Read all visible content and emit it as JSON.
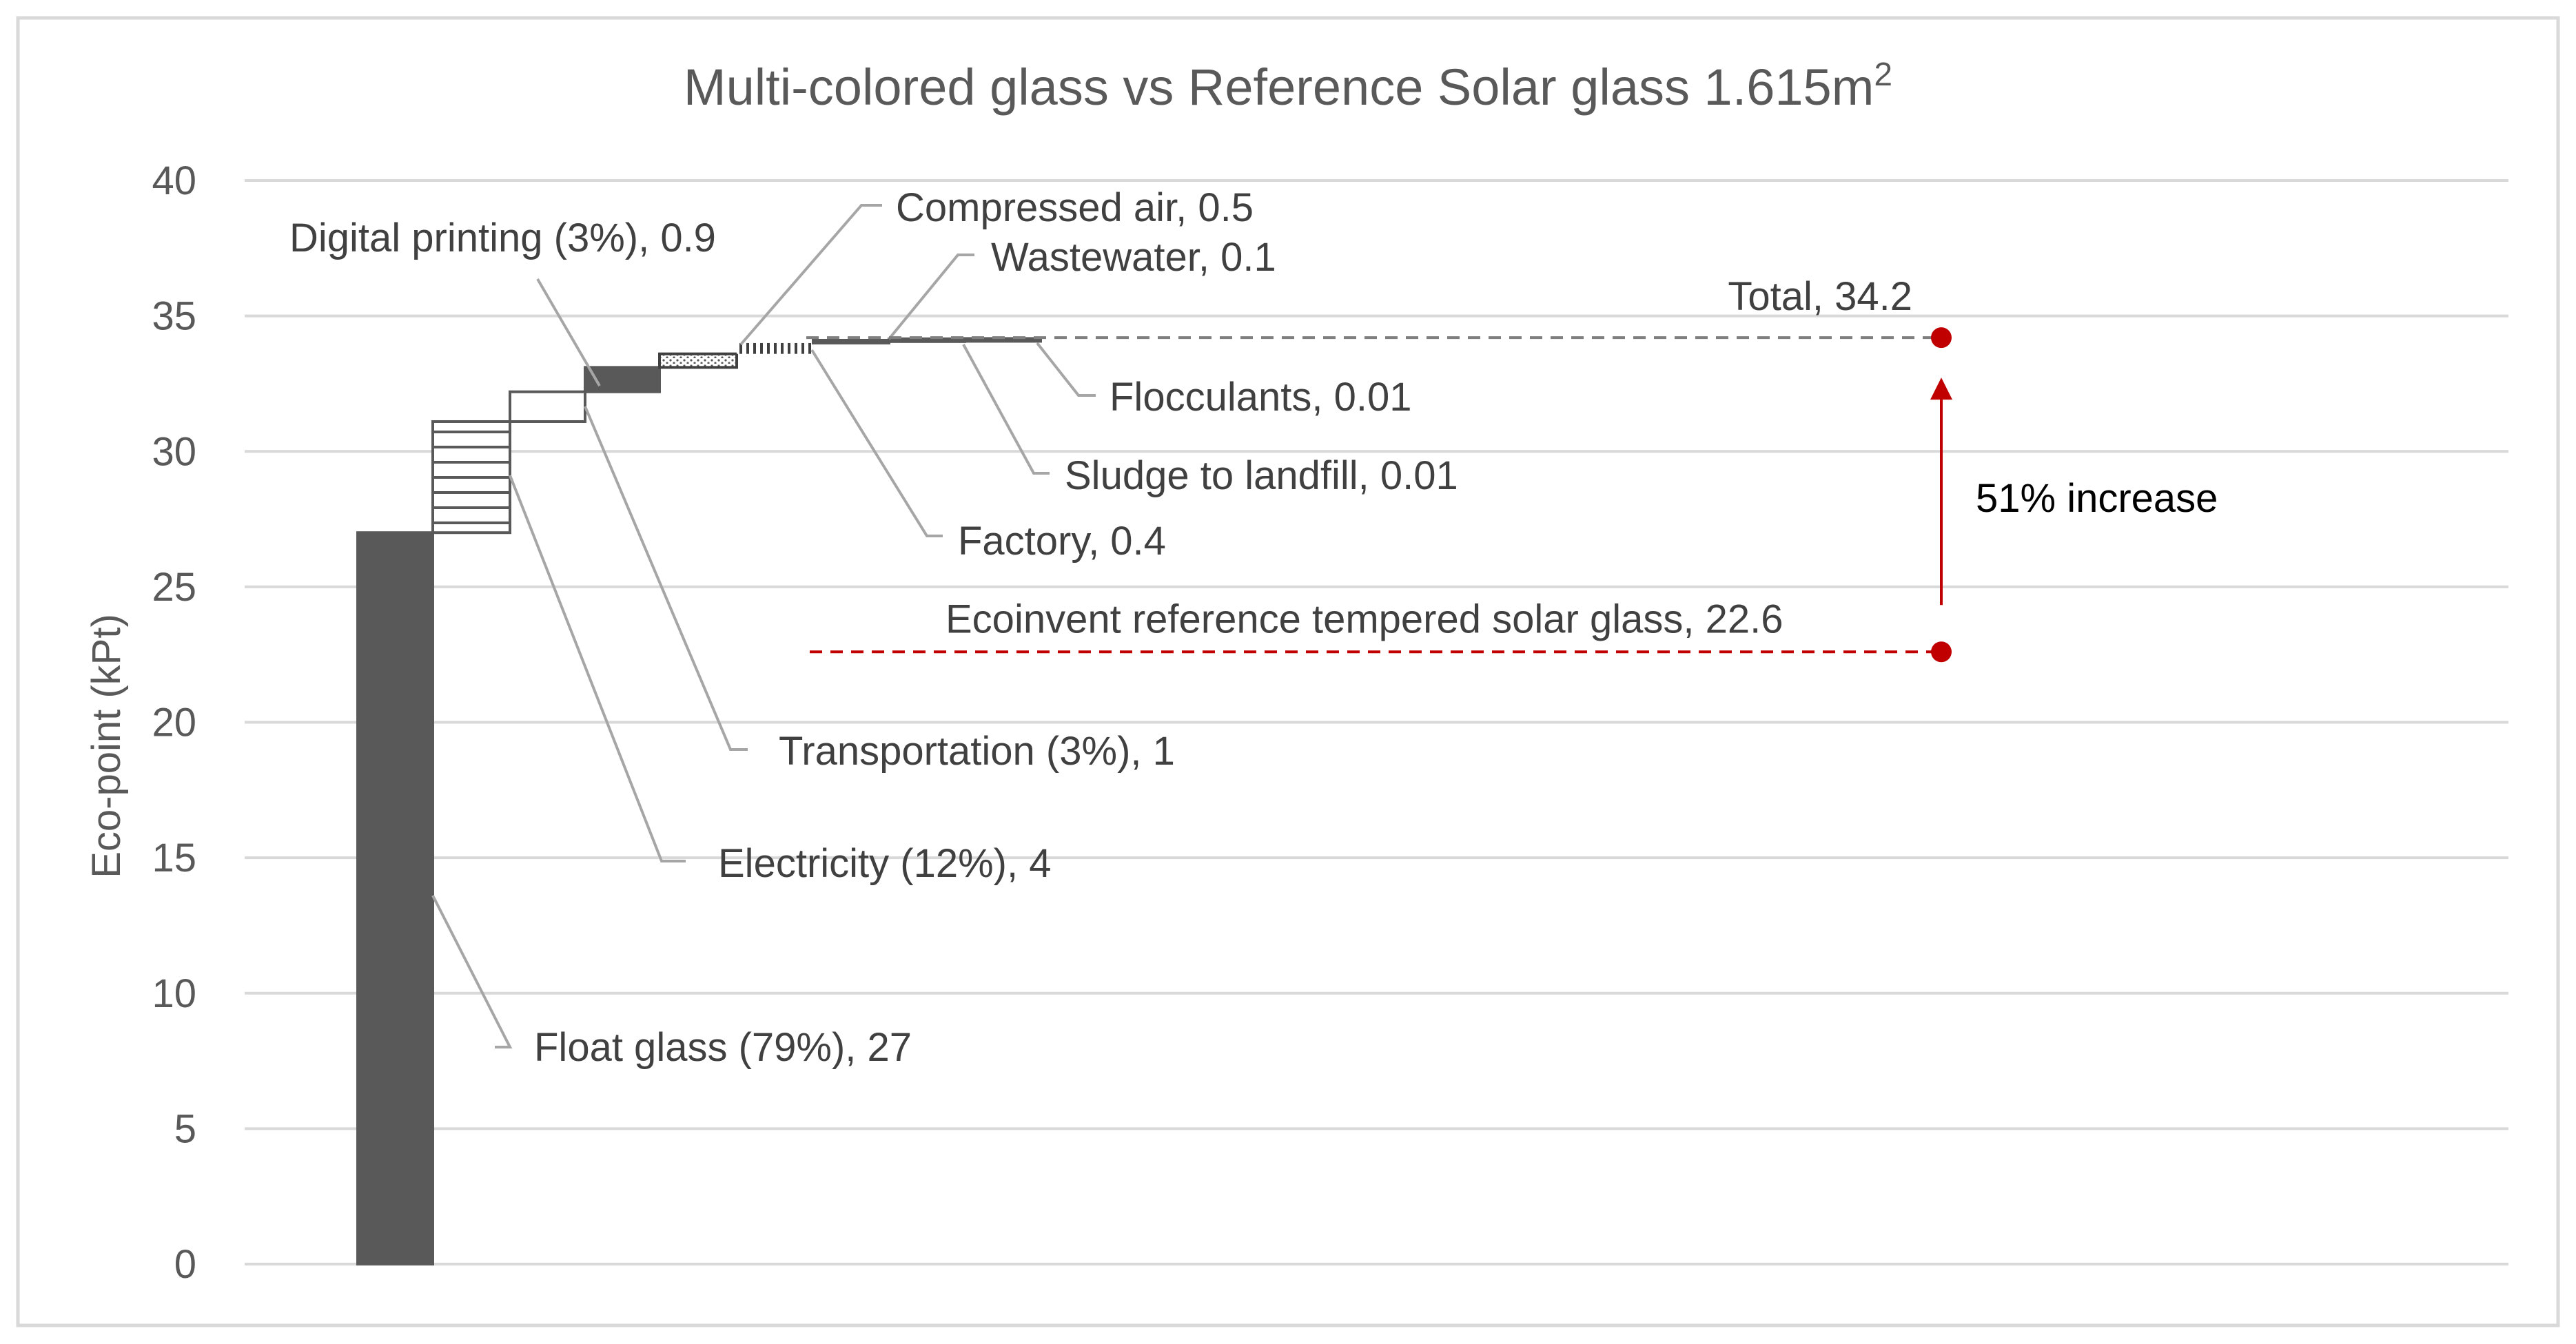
{
  "chart_data": {
    "type": "bar",
    "subtype": "waterfall",
    "title": "Multi-colored glass vs Reference Solar glass 1.615m",
    "title_superscript": "2",
    "ylabel": "Eco-point (kPt)",
    "xlabel": "",
    "ylim": [
      0,
      40
    ],
    "yticks": [
      "0",
      "5",
      "10",
      "15",
      "20",
      "25",
      "30",
      "35",
      "40"
    ],
    "grid": true,
    "steps": [
      {
        "name": "Float glass (79%)",
        "label": "Float glass (79%), 27",
        "base": 0,
        "value": 27,
        "fill": "solid-dark"
      },
      {
        "name": "Electricity (12%)",
        "label": "Electricity (12%), 4",
        "base": 27,
        "value": 4.1,
        "fill": "hlines"
      },
      {
        "name": "Transportation (3%)",
        "label": "Transportation (3%), 1",
        "base": 31.1,
        "value": 1.1,
        "fill": "white"
      },
      {
        "name": "Digital printing (3%)",
        "label": "Digital printing (3%), 0.9",
        "base": 32.2,
        "value": 0.9,
        "fill": "solid-dark"
      },
      {
        "name": "Compressed air",
        "label": "Compressed air, 0.5",
        "base": 33.1,
        "value": 0.5,
        "fill": "dots"
      },
      {
        "name": "Factory",
        "label": "Factory, 0.4",
        "base": 33.6,
        "value": 0.4,
        "fill": "vlines"
      },
      {
        "name": "Wastewater",
        "label": "Wastewater, 0.1",
        "base": 34.0,
        "value": 0.1,
        "fill": "white"
      },
      {
        "name": "Sludge to landfill",
        "label": "Sludge to landfill, 0.01",
        "base": 34.1,
        "value": 0.01,
        "fill": "white"
      },
      {
        "name": "Flocculants",
        "label": "Flocculants, 0.01",
        "base": 34.11,
        "value": 0.01,
        "fill": "white"
      }
    ],
    "total": {
      "label": "Total, 34.2",
      "value": 34.2,
      "color": "#c00000"
    },
    "reference": {
      "label": "Ecoinvent reference tempered solar glass, 22.6",
      "value": 22.6,
      "color": "#c00000"
    },
    "increase_label": "51% increase"
  }
}
